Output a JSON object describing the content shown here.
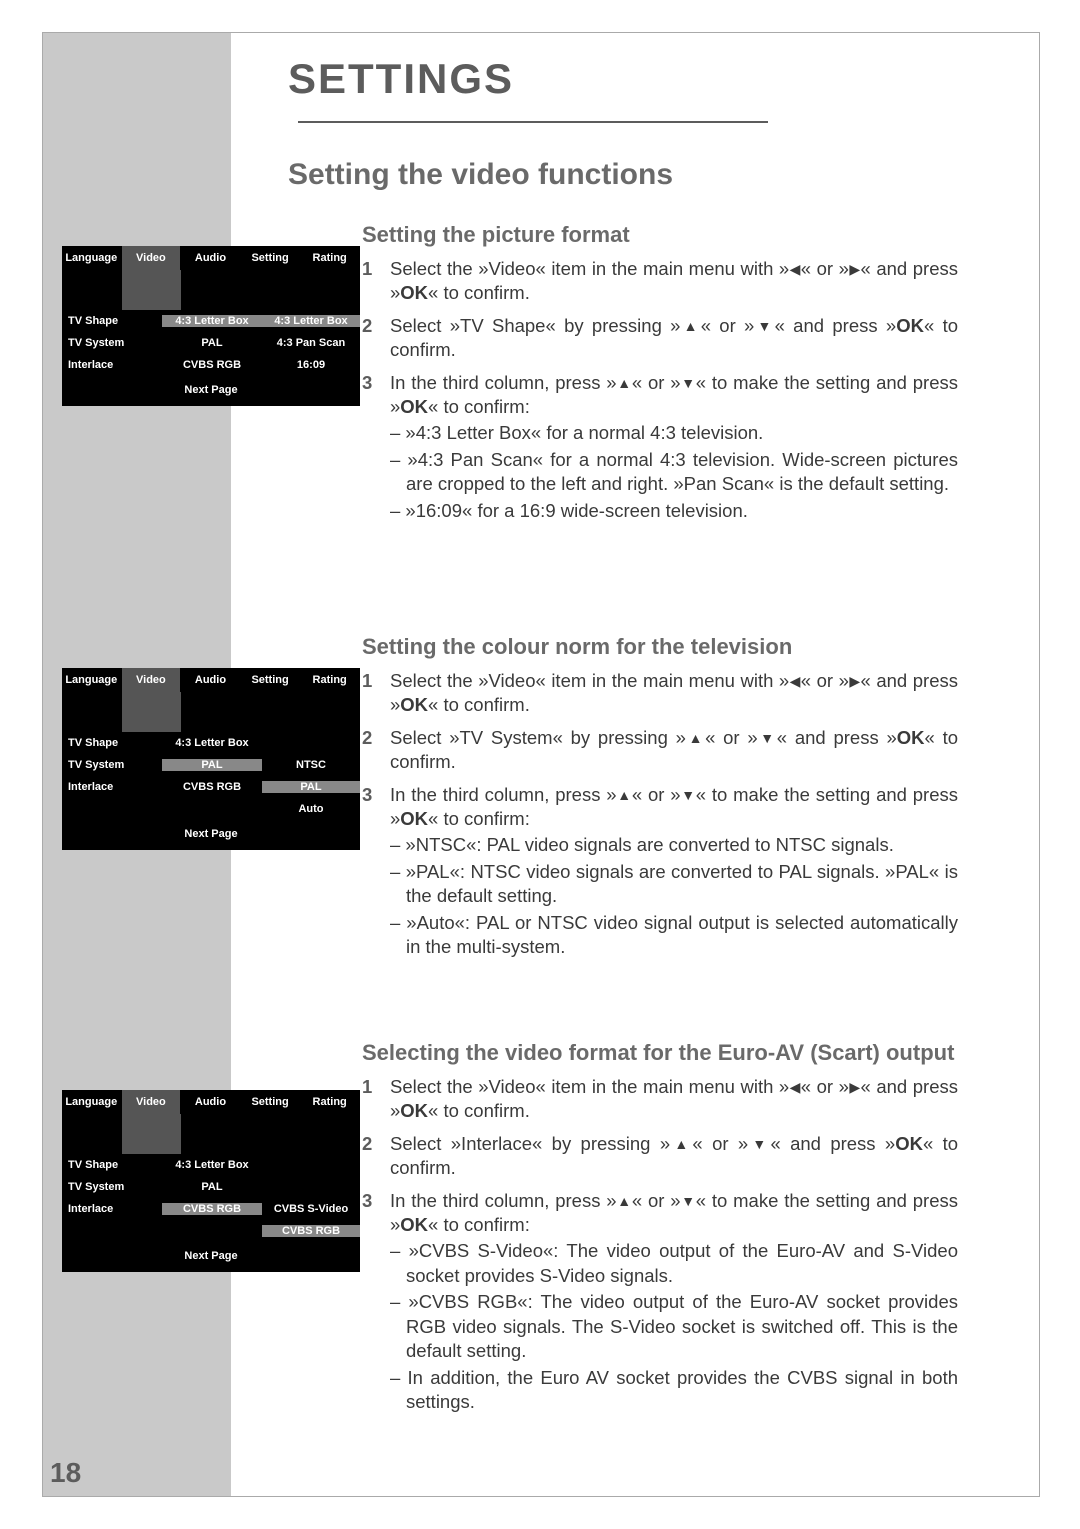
{
  "page_number": "18",
  "header_title": "SETTINGS",
  "main_heading": "Setting the video functions",
  "colors": {
    "gray_stripe": "#c9c9c9",
    "heading_gray": "#6a6a6a",
    "text": "#3a3a3a",
    "menu_bg": "#000000",
    "menu_highlight": "#888888",
    "menu_active": "#555555"
  },
  "fonts": {
    "header_size_pt": 42,
    "main_heading_size_pt": 30,
    "subheading_size_pt": 22,
    "body_size_pt": 18.5,
    "menu_size_pt": 11
  },
  "sections": [
    {
      "subheading": "Setting the picture format",
      "steps": [
        {
          "num": "1",
          "parts": [
            "Select the »Video« item in the main menu with »",
            "◀",
            "« or »",
            "▶",
            "« and press »",
            "OK",
            "« to confirm."
          ]
        },
        {
          "num": "2",
          "parts": [
            "Select »TV Shape« by pressing »",
            "▲",
            "« or »",
            "▼",
            "« and press »",
            "OK",
            "« to confirm."
          ]
        },
        {
          "num": "3",
          "parts": [
            "In the third column, press »",
            "▲",
            "« or »",
            "▼",
            "« to make the setting and press »",
            "OK",
            "« to confirm:"
          ],
          "subs": [
            "– »4:3 Letter Box« for a normal 4:3 television.",
            "– »4:3 Pan Scan« for a normal 4:3 television. Wide-screen pictures are cropped to the left and right. »Pan Scan« is the default setting.",
            "– »16:09« for a 16:9 wide-screen television."
          ]
        }
      ]
    },
    {
      "subheading": "Setting the colour norm for the television",
      "steps": [
        {
          "num": "1",
          "parts": [
            "Select the »Video« item in the main menu with »",
            "◀",
            "« or »",
            "▶",
            "« and press »",
            "OK",
            "« to confirm."
          ]
        },
        {
          "num": "2",
          "parts": [
            "Select »TV System« by pressing »",
            "▲",
            "« or »",
            "▼",
            "« and press »",
            "OK",
            "« to confirm."
          ]
        },
        {
          "num": "3",
          "parts": [
            "In the third column, press »",
            "▲",
            "« or »",
            "▼",
            "« to make the setting and press »",
            "OK",
            "« to confirm:"
          ],
          "subs": [
            "– »NTSC«: PAL video signals are converted to NTSC signals.",
            "– »PAL«: NTSC video signals are converted to PAL signals. »PAL« is the default setting.",
            "– »Auto«: PAL or NTSC video signal output is selected automatically in the multi-system."
          ]
        }
      ]
    },
    {
      "subheading": "Selecting the video format for the Euro-AV (Scart) output",
      "steps": [
        {
          "num": "1",
          "parts": [
            "Select the »Video« item in the main menu with »",
            "◀",
            "« or »",
            "▶",
            "« and press »",
            "OK",
            "« to confirm."
          ]
        },
        {
          "num": "2",
          "parts": [
            "Select »Interlace« by pressing »",
            "▲",
            "« or »",
            "▼",
            "« and press »",
            "OK",
            "« to confirm."
          ]
        },
        {
          "num": "3",
          "parts": [
            "In the third column, press »",
            "▲",
            "« or »",
            "▼",
            "« to make the setting and press »",
            "OK",
            "« to confirm:"
          ],
          "subs": [
            "– »CVBS S-Video«: The video output of the Euro-AV and S-Video socket provides S-Video signals.",
            "– »CVBS RGB«: The video output of the Euro-AV socket provides RGB video signals. The S-Video socket is switched off. This is the default setting.",
            "– In addition, the Euro AV socket provides the CVBS signal in both settings."
          ]
        }
      ]
    }
  ],
  "menus": {
    "tabs": [
      "Language",
      "Video",
      "Audio",
      "Setting",
      "Rating"
    ],
    "active_tab_index": 1,
    "footer": "Next Page",
    "menu1": {
      "rows": [
        {
          "c1": "TV Shape",
          "c2": "4:3 Letter Box",
          "c2_hl": true,
          "c3": "4:3 Letter Box",
          "c3_hl": true
        },
        {
          "c1": "TV System",
          "c2": "PAL",
          "c3": "4:3 Pan Scan"
        },
        {
          "c1": "Interlace",
          "c2": "CVBS RGB",
          "c3": "16:09"
        }
      ]
    },
    "menu2": {
      "rows": [
        {
          "c1": "TV Shape",
          "c2": "4:3 Letter Box"
        },
        {
          "c1": "TV System",
          "c2": "PAL",
          "c2_hl": true,
          "c3": "NTSC"
        },
        {
          "c1": "Interlace",
          "c2": "CVBS RGB",
          "c3": "PAL",
          "c3_hl": true
        },
        {
          "c1": "",
          "c2": "",
          "c3": "Auto"
        }
      ]
    },
    "menu3": {
      "rows": [
        {
          "c1": "TV Shape",
          "c2": "4:3 Letter Box"
        },
        {
          "c1": "TV System",
          "c2": "PAL"
        },
        {
          "c1": "Interlace",
          "c2": "CVBS RGB",
          "c2_hl": true,
          "c3": "CVBS S-Video"
        },
        {
          "c1": "",
          "c2": "",
          "c3": "CVBS RGB",
          "c3_hl": true
        }
      ]
    }
  }
}
